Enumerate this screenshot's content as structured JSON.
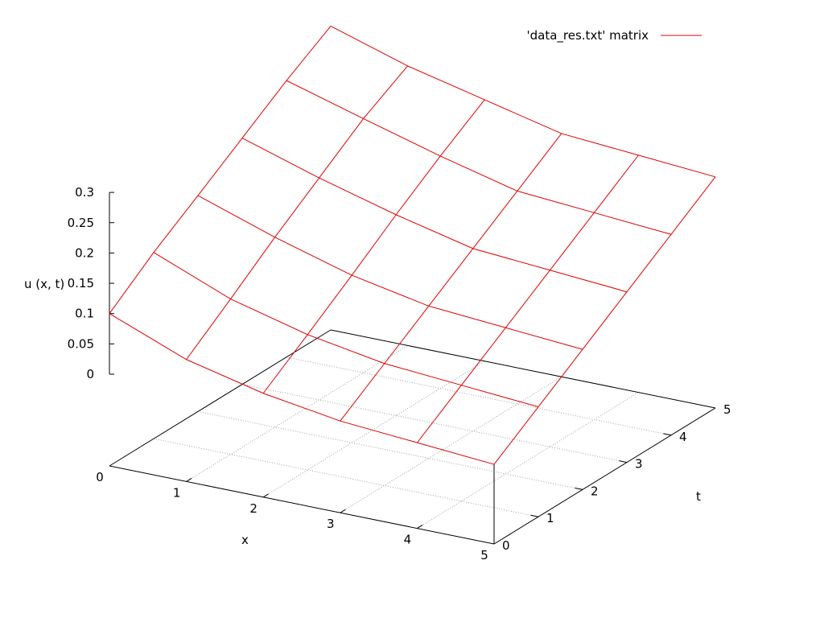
{
  "chart_data": {
    "type": "surface",
    "xlabel": "x",
    "ylabel": "t",
    "zlabel": "u (x, t)",
    "legend": {
      "label": "'data_res.txt' matrix",
      "position": "top-right"
    },
    "x_ticks": [
      "0",
      "1",
      "2",
      "3",
      "4",
      "5"
    ],
    "y_ticks": [
      "0",
      "1",
      "2",
      "3",
      "4",
      "5"
    ],
    "z_ticks": [
      "0",
      "0.05",
      "0.1",
      "0.15",
      "0.2",
      "0.25",
      "0.3"
    ],
    "xlim": [
      0,
      5
    ],
    "ylim": [
      0,
      5
    ],
    "zlim": [
      0,
      0.3
    ],
    "grid": true,
    "x": [
      0,
      1,
      2,
      3,
      4,
      5
    ],
    "t": [
      0,
      1,
      2,
      3,
      4,
      5
    ],
    "u": [
      [
        0.1,
        0.156,
        0.205,
        0.255,
        0.305,
        0.35
      ],
      [
        0.05,
        0.105,
        0.162,
        0.215,
        0.268,
        0.31
      ],
      [
        0.02,
        0.072,
        0.125,
        0.18,
        0.232,
        0.28
      ],
      [
        0.0,
        0.05,
        0.1,
        0.15,
        0.2,
        0.25
      ],
      [
        -0.01,
        0.04,
        0.09,
        0.14,
        0.19,
        0.24
      ],
      [
        -0.02,
        0.03,
        0.08,
        0.13,
        0.18,
        0.23
      ]
    ]
  },
  "colors": {
    "surface": "#e00000",
    "axes": "#000000",
    "grid": "#a0a0a0"
  }
}
